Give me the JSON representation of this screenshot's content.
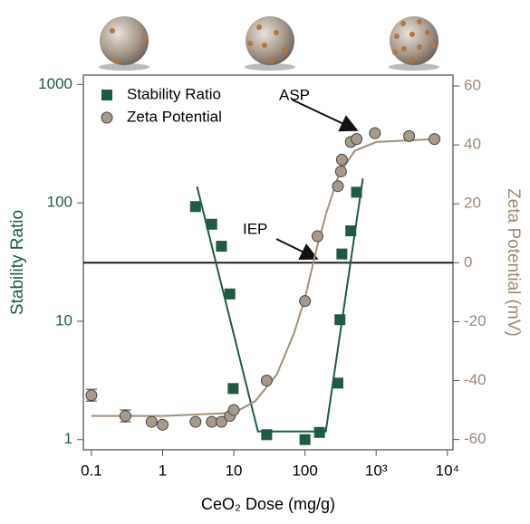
{
  "chart_data": {
    "type": "scatter",
    "xlabel": "CeO₂ Dose (mg/g)",
    "ylabel": "Stability Ratio",
    "y2label": "Zeta Potential (mV)",
    "xlog": true,
    "ylog": true,
    "xlim": [
      0.077,
      12000
    ],
    "xticks": [
      0.1,
      1,
      10,
      100,
      {
        "value": 1000,
        "label": "10³"
      },
      {
        "value": 10000,
        "label": "10⁴"
      }
    ],
    "ylim": [
      0.82,
      1200
    ],
    "yticks": [
      1,
      10,
      100,
      1000
    ],
    "y2lim": [
      -63.5,
      63.7
    ],
    "y2ticks": [
      -60,
      -40,
      -20,
      0,
      20,
      40,
      60
    ],
    "legend": "upper left",
    "series": [
      {
        "name": "Stability Ratio",
        "color": "#1e5b40",
        "marker": "square",
        "x": [
          2.9,
          4.9,
          6.7,
          8.8,
          9.8,
          29,
          100,
          160,
          290,
          310,
          330,
          440,
          530
        ],
        "values": [
          93,
          66,
          43,
          17,
          2.7,
          1.1,
          1.0,
          1.15,
          3.0,
          10.3,
          37,
          58,
          123
        ]
      },
      {
        "name": "Zeta Potential",
        "color": "#a89a8b",
        "marker": "circle",
        "axis": "y2",
        "x": [
          0.1,
          0.3,
          0.7,
          1,
          2.9,
          4.9,
          6.7,
          8.8,
          10,
          29,
          100,
          150,
          290,
          320,
          330,
          440,
          530,
          960,
          2900,
          6600
        ],
        "values": [
          -45,
          -52,
          -54,
          -55,
          -54,
          -54,
          -54,
          -52,
          -50,
          -40,
          -13,
          9,
          26,
          31,
          35,
          41,
          42,
          44,
          43,
          42
        ],
        "errors": [
          2,
          2,
          null,
          null,
          null,
          null,
          null,
          null,
          null,
          null,
          null,
          null,
          null,
          null,
          null,
          null,
          null,
          null,
          null,
          null
        ]
      }
    ],
    "fits": [
      {
        "color": "#1e5b40",
        "x": [
          3.05,
          21.8,
          196,
          650
        ],
        "values": [
          137,
          1.17,
          1.17,
          161
        ]
      },
      {
        "color": "#a0907d",
        "axis": "y2",
        "x": [
          0.1,
          1,
          10,
          20,
          40,
          70,
          100,
          150,
          200,
          300,
          500,
          1000,
          7000
        ],
        "values": [
          -52,
          -52,
          -51,
          -47,
          -38,
          -24,
          -12,
          6,
          17,
          30,
          38,
          41,
          42
        ]
      }
    ],
    "annotations": [
      {
        "text": "ASP"
      },
      {
        "text": "IEP"
      }
    ]
  }
}
